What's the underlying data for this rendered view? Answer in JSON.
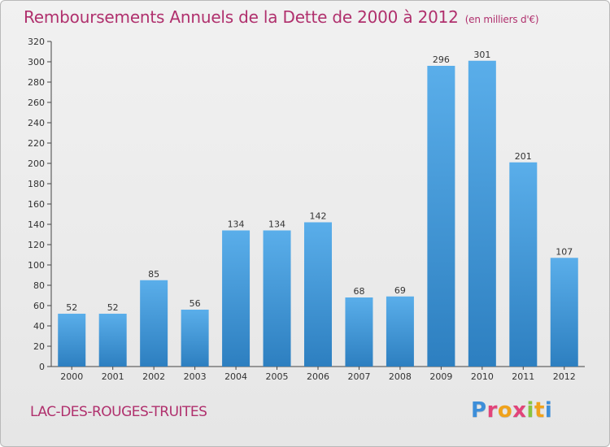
{
  "header": {
    "title": "Remboursements Annuels de la Dette de 2000 à 2012",
    "unit": "(en milliers d'€)"
  },
  "footer": {
    "commune": "LAC-DES-ROUGES-TRUITES",
    "logo": "Proxiti"
  },
  "colors": {
    "title": "#b0306d",
    "bar_top": "#5aaeea",
    "bar_bottom": "#2d7fc0",
    "logo_letters": [
      "#3d8ed9",
      "#e2447a",
      "#f0a21b",
      "#e2447a",
      "#89c43f",
      "#f0a21b",
      "#3d8ed9"
    ]
  },
  "chart_data": {
    "type": "bar",
    "categories": [
      "2000",
      "2001",
      "2002",
      "2003",
      "2004",
      "2005",
      "2006",
      "2007",
      "2008",
      "2009",
      "2010",
      "2011",
      "2012"
    ],
    "values": [
      52,
      52,
      85,
      56,
      134,
      134,
      142,
      68,
      69,
      296,
      301,
      201,
      107
    ],
    "ylim": [
      0,
      320
    ],
    "yticks": [
      0,
      20,
      40,
      60,
      80,
      100,
      120,
      140,
      160,
      180,
      200,
      220,
      240,
      260,
      280,
      300,
      320
    ],
    "grid": false,
    "data_labels": true
  }
}
